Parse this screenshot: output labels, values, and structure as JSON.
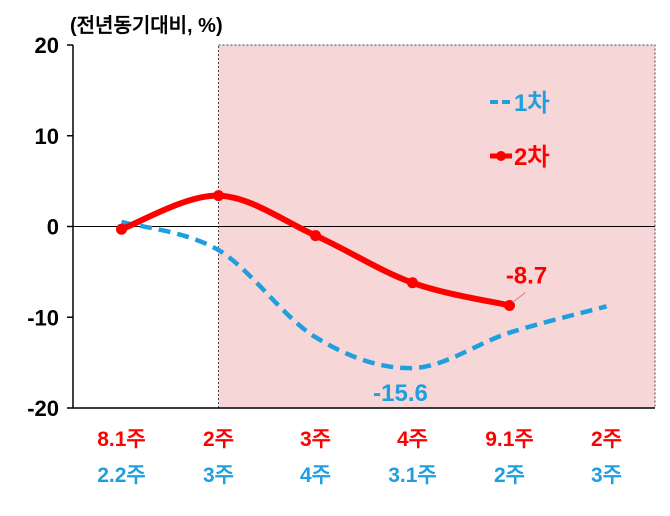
{
  "chart_data": {
    "type": "line",
    "unit_label": "(전년동기대비, %)",
    "ylim": [
      -20,
      20
    ],
    "y_ticks": [
      "20",
      "10",
      "0",
      "-10",
      "-20"
    ],
    "y_tick_values": [
      20,
      10,
      0,
      -10,
      -20
    ],
    "categories_row1": [
      "8.1주",
      "2주",
      "3주",
      "4주",
      "9.1주",
      "2주"
    ],
    "categories_row2": [
      "2.2주",
      "3주",
      "4주",
      "3.1주",
      "2주",
      "3주"
    ],
    "shaded_from_category_index": 1.5,
    "series": [
      {
        "name": "1차",
        "style": "dashed",
        "color": "#1f9fdf",
        "values": [
          0.5,
          -2.6,
          -12.2,
          -15.6,
          -11.7,
          -8.8
        ]
      },
      {
        "name": "2차",
        "style": "solid-marker",
        "color": "#ff0000",
        "values": [
          -0.3,
          3.4,
          -1.0,
          -6.2,
          -8.7,
          null
        ]
      }
    ],
    "annotations": [
      {
        "text": "-8.7",
        "series": "2차",
        "index": 4,
        "color": "#ff0000"
      },
      {
        "text": "-15.6",
        "series": "1차",
        "index": 3,
        "color": "#1f9fdf"
      }
    ],
    "legend_placement": "top-right",
    "shade_color": "#f6d6d6",
    "grid": false
  }
}
